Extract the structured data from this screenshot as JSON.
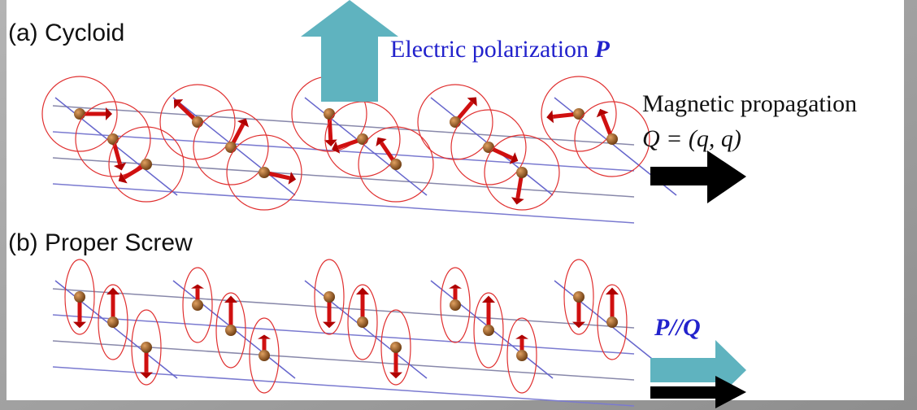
{
  "panel_a": {
    "label": "(a)  Cycloid"
  },
  "polarization": {
    "text": "Electric polarization",
    "symbol": "P"
  },
  "propagation": {
    "text": "Magnetic propagation",
    "formula": "Q = (q, q)"
  },
  "panel_b": {
    "label": "(b) Proper Screw",
    "relation": "P//Q"
  }
}
